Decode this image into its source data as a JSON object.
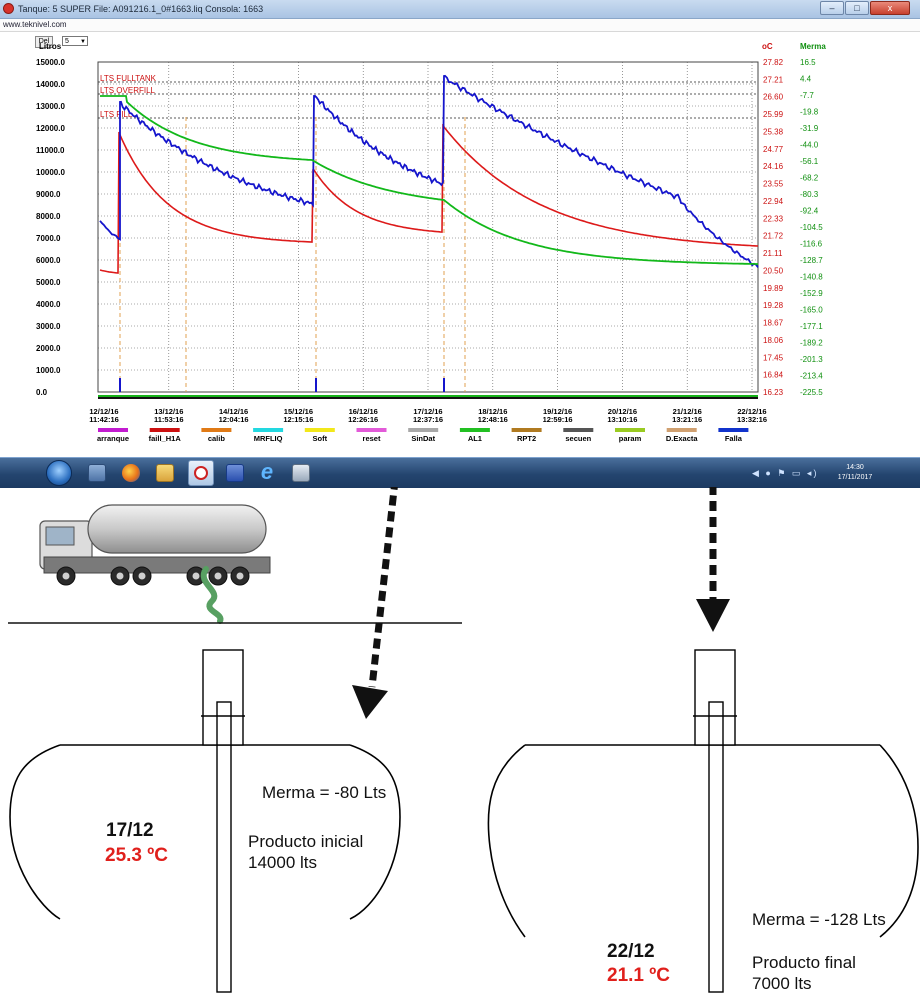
{
  "window": {
    "title": "Tanque: 5 SUPER    File: A091216.1_0#1663.liq    Consola: 1663",
    "url": "www.teknivel.com",
    "min_label": "‒",
    "max_label": "□",
    "close_label": "x"
  },
  "controls": {
    "del_label": "Del",
    "tank_select_value": "5",
    "y_axis_unit": "Litros"
  },
  "chart": {
    "temp_header": "oC",
    "merma_header": "Merma",
    "left_ticks": [
      "15000.0",
      "14000.0",
      "13000.0",
      "12000.0",
      "11000.0",
      "10000.0",
      "9000.0",
      "8000.0",
      "7000.0",
      "6000.0",
      "5000.0",
      "4000.0",
      "3000.0",
      "2000.0",
      "1000.0",
      "0.0"
    ],
    "temp_ticks": [
      "27.82",
      "27.21",
      "26.60",
      "25.99",
      "25.38",
      "24.77",
      "24.16",
      "23.55",
      "22.94",
      "22.33",
      "21.72",
      "21.11",
      "20.50",
      "19.89",
      "19.28",
      "18.67",
      "18.06",
      "17.45",
      "16.84",
      "16.23"
    ],
    "merma_ticks": [
      "16.5",
      "4.4",
      "-7.7",
      "-19.8",
      "-31.9",
      "-44.0",
      "-56.1",
      "-68.2",
      "-80.3",
      "-92.4",
      "-104.5",
      "-116.6",
      "-128.7",
      "-140.8",
      "-152.9",
      "-165.0",
      "-177.1",
      "-189.2",
      "-201.3",
      "-213.4",
      "-225.5"
    ],
    "x_ticks": [
      {
        "d": "12/12/16",
        "t": "11:42:16"
      },
      {
        "d": "13/12/16",
        "t": "11:53:16"
      },
      {
        "d": "14/12/16",
        "t": "12:04:16"
      },
      {
        "d": "15/12/16",
        "t": "12:15:16"
      },
      {
        "d": "16/12/16",
        "t": "12:26:16"
      },
      {
        "d": "17/12/16",
        "t": "12:37:16"
      },
      {
        "d": "18/12/16",
        "t": "12:48:16"
      },
      {
        "d": "19/12/16",
        "t": "12:59:16"
      },
      {
        "d": "20/12/16",
        "t": "13:10:16"
      },
      {
        "d": "21/12/16",
        "t": "13:21:16"
      },
      {
        "d": "22/12/16",
        "t": "13:32:16"
      }
    ],
    "ref_lines": [
      "LTS FULLTANK",
      "LTS OVERFILL",
      "LTS FILL"
    ],
    "legend": [
      {
        "label": "arranque",
        "color": "#c21bd0"
      },
      {
        "label": "faill_H1A",
        "color": "#cc1111"
      },
      {
        "label": "calib",
        "color": "#e07a16"
      },
      {
        "label": "MRFLIQ",
        "color": "#22d8e0"
      },
      {
        "label": "Soft",
        "color": "#f2e81a"
      },
      {
        "label": "reset",
        "color": "#e25ad8"
      },
      {
        "label": "SinDat",
        "color": "#a8a8a8"
      },
      {
        "label": "AL1",
        "color": "#22c022"
      },
      {
        "label": "RPT2",
        "color": "#b07a20"
      },
      {
        "label": "secuen",
        "color": "#555555"
      },
      {
        "label": "param",
        "color": "#9acb22"
      },
      {
        "label": "D.Exacta",
        "color": "#d0a070"
      },
      {
        "label": "Falla",
        "color": "#1133cc"
      }
    ]
  },
  "taskbar": {
    "tray_icons": "◀ ● ⚑ ▭ ◂)",
    "time": "14:30",
    "date": "17/11/2017"
  },
  "tank_initial": {
    "merma": "Merma = -80 Lts",
    "date": "17/12",
    "temp": "25.3 ºC",
    "product_line1": "Producto inicial",
    "product_line2": "14000 lts"
  },
  "tank_final": {
    "merma": "Merma = -128 Lts",
    "date": "22/12",
    "temp": "21.1 ºC",
    "product_line1": "Producto final",
    "product_line2": "7000 lts"
  },
  "colors": {
    "volume": "#1515cc",
    "temperature": "#dd1a1a",
    "merma": "#12b81a",
    "event_line": "#e0a050",
    "liquid_top": "#dff6fd",
    "liquid_bottom": "#2ab6ec",
    "merma_band": "#33dd33"
  }
}
